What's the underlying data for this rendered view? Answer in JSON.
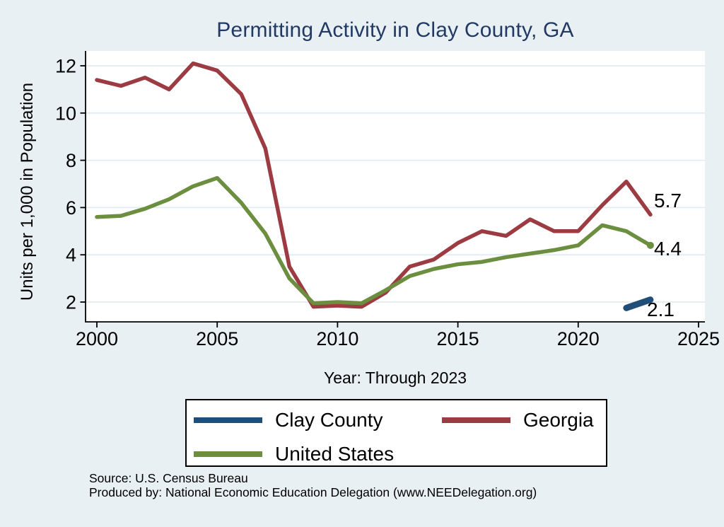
{
  "chart_data": {
    "type": "line",
    "title": "Permitting Activity in Clay County, GA",
    "xlabel": "Year: Through 2023",
    "ylabel": "Units per 1,000 in Population",
    "xlim": [
      1999.5,
      2025.3
    ],
    "ylim": [
      1.2,
      12.6
    ],
    "x_ticks": [
      2000,
      2005,
      2010,
      2015,
      2020,
      2025
    ],
    "y_ticks": [
      2,
      4,
      6,
      8,
      10,
      12
    ],
    "grid": true,
    "legend_position": "bottom",
    "series": [
      {
        "name": "Clay County",
        "color": "#1f4e79",
        "line_width": 9,
        "x": [
          2022,
          2023
        ],
        "values": [
          1.75,
          2.1
        ],
        "end_label": "2.1",
        "end_marker": false
      },
      {
        "name": "Georgia",
        "color": "#9d3b42",
        "line_width": 5.5,
        "x": [
          2000,
          2001,
          2002,
          2003,
          2004,
          2005,
          2006,
          2007,
          2008,
          2009,
          2010,
          2011,
          2012,
          2013,
          2014,
          2015,
          2016,
          2017,
          2018,
          2019,
          2020,
          2021,
          2022,
          2023
        ],
        "values": [
          11.4,
          11.15,
          11.5,
          11.0,
          12.1,
          11.8,
          10.8,
          8.5,
          3.5,
          1.8,
          1.85,
          1.8,
          2.4,
          3.5,
          3.8,
          4.5,
          5.0,
          4.8,
          5.5,
          5.0,
          5.0,
          6.1,
          7.1,
          5.7
        ],
        "end_label": "5.7",
        "end_marker": false
      },
      {
        "name": "United States",
        "color": "#6b8e3f",
        "line_width": 5.5,
        "x": [
          2000,
          2001,
          2002,
          2003,
          2004,
          2005,
          2006,
          2007,
          2008,
          2009,
          2010,
          2011,
          2012,
          2013,
          2014,
          2015,
          2016,
          2017,
          2018,
          2019,
          2020,
          2021,
          2022,
          2023
        ],
        "values": [
          5.6,
          5.65,
          5.95,
          6.35,
          6.9,
          7.25,
          6.2,
          4.9,
          3.0,
          1.95,
          2.0,
          1.95,
          2.5,
          3.1,
          3.4,
          3.6,
          3.7,
          3.9,
          4.05,
          4.2,
          4.4,
          5.25,
          5.0,
          4.4
        ],
        "end_label": "4.4",
        "end_marker": true
      }
    ]
  },
  "footer": {
    "line1": "Source: U.S. Census Bureau",
    "line2": "Produced by: National Economic Education Delegation (www.NEEDelegation.org)"
  },
  "style_colors": {
    "background": "#e8f0f4",
    "plot_background": "#ffffff",
    "gridline": "#e2ebf3",
    "axis": "#000000",
    "title": "#223a63"
  }
}
